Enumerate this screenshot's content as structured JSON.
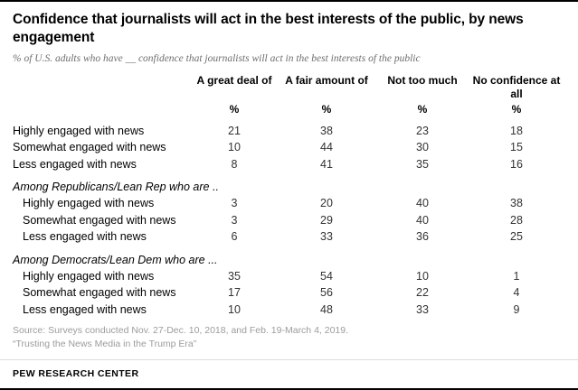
{
  "title": "Confidence that journalists will act in the best interests of the public, by news engagement",
  "subtitle": "% of U.S. adults who have __ confidence that journalists will act in the best interests of the public",
  "chart_data": {
    "type": "table",
    "unit": "%",
    "columns": [
      "A great deal of",
      "A fair amount of",
      "Not too much",
      "No confidence at all"
    ],
    "rows": [
      {
        "kind": "data",
        "label": "Highly engaged with news",
        "values": [
          21,
          38,
          23,
          18
        ]
      },
      {
        "kind": "data",
        "label": "Somewhat engaged with news",
        "values": [
          10,
          44,
          30,
          15
        ]
      },
      {
        "kind": "data",
        "label": "Less engaged with news",
        "values": [
          8,
          41,
          35,
          16
        ]
      },
      {
        "kind": "section",
        "label": "Among Republicans/Lean Rep who are ..",
        "values": []
      },
      {
        "kind": "data",
        "label": "Highly engaged with news",
        "values": [
          3,
          20,
          40,
          38
        ]
      },
      {
        "kind": "data",
        "label": "Somewhat engaged with news",
        "values": [
          3,
          29,
          40,
          28
        ]
      },
      {
        "kind": "data",
        "label": "Less engaged with news",
        "values": [
          6,
          33,
          36,
          25
        ]
      },
      {
        "kind": "section",
        "label": "Among Democrats/Lean Dem who are ...",
        "values": []
      },
      {
        "kind": "data",
        "label": "Highly engaged with news",
        "values": [
          35,
          54,
          10,
          1
        ]
      },
      {
        "kind": "data",
        "label": "Somewhat engaged with news",
        "values": [
          17,
          56,
          22,
          4
        ]
      },
      {
        "kind": "data",
        "label": "Less engaged with news",
        "values": [
          10,
          48,
          33,
          9
        ]
      }
    ]
  },
  "source": {
    "line1": "Source: Surveys conducted Nov. 27-Dec. 10, 2018, and Feb. 19-March 4, 2019.",
    "line2": "“Trusting the News Media in the Trump Era”"
  },
  "footer": "PEW RESEARCH CENTER"
}
